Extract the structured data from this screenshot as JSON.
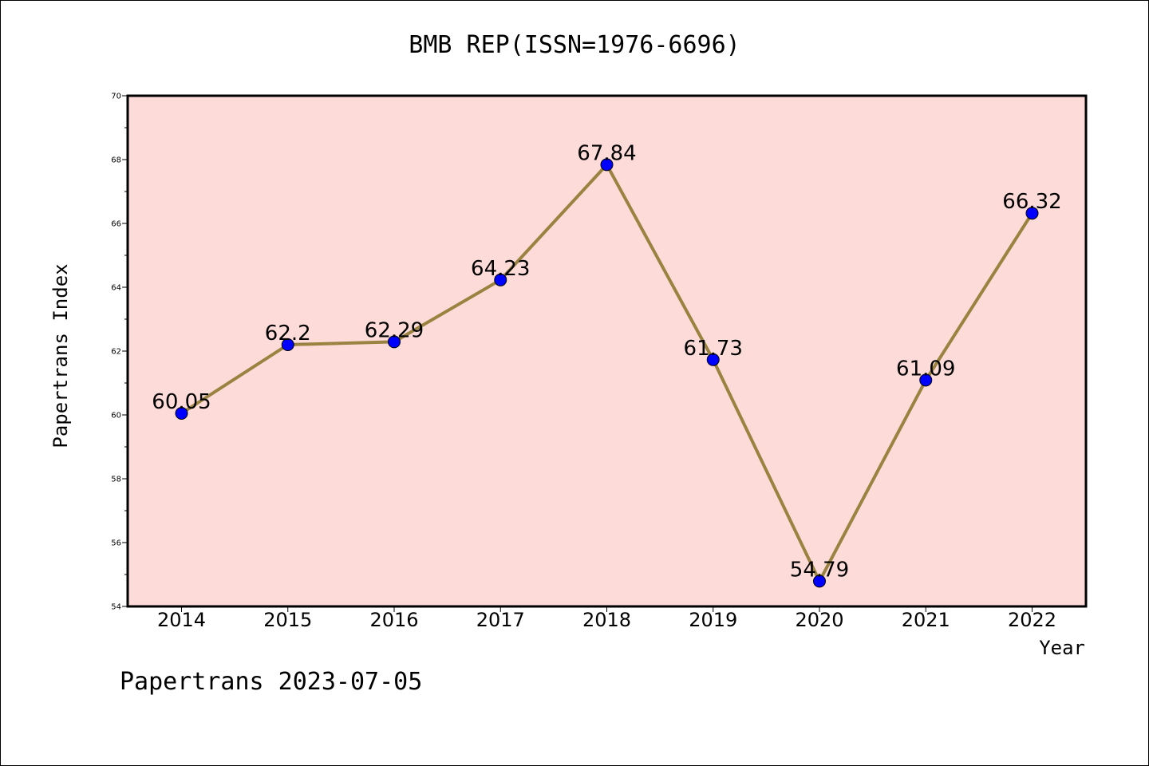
{
  "chart_data": {
    "type": "line",
    "title": "BMB REP(ISSN=1976-6696)",
    "xlabel": "Year",
    "ylabel": "Papertrans Index",
    "categories": [
      "2014",
      "2015",
      "2016",
      "2017",
      "2018",
      "2019",
      "2020",
      "2021",
      "2022"
    ],
    "series": [
      {
        "values": [
          60.05,
          62.2,
          62.29,
          64.23,
          67.84,
          61.73,
          54.79,
          61.09,
          66.32
        ],
        "labels": [
          "60.05",
          "62.2",
          "62.29",
          "64.23",
          "67.84",
          "61.73",
          "54.79",
          "61.09",
          "66.32"
        ]
      }
    ],
    "ylim": [
      54,
      70
    ],
    "yticks": [
      "54",
      "56",
      "58",
      "60",
      "62",
      "64",
      "66",
      "68",
      "70"
    ],
    "grid": false,
    "colors": {
      "plot_background": "#fddbd8",
      "line": "#9a8240",
      "marker": "#0000ff"
    }
  },
  "footer": {
    "text": "Papertrans 2023-07-05"
  }
}
